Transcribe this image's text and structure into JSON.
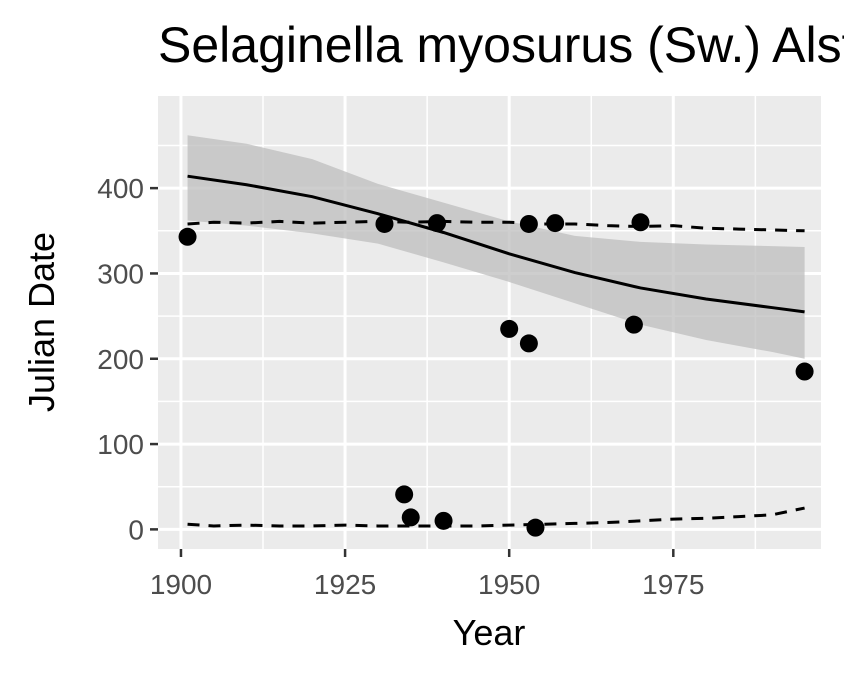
{
  "chart_data": {
    "type": "scatter",
    "title": "Selaginella myosurus (Sw.) Alston",
    "xlabel": "Year",
    "ylabel": "Julian Date",
    "xlim": [
      1896.5,
      1997.5
    ],
    "ylim": [
      -23,
      508
    ],
    "x_ticks": [
      1900,
      1925,
      1950,
      1975
    ],
    "x_tick_labels": [
      "1900",
      "1925",
      "1950",
      "1975"
    ],
    "y_ticks": [
      0,
      100,
      200,
      300,
      400
    ],
    "y_tick_labels": [
      "0",
      "100",
      "200",
      "300",
      "400"
    ],
    "grid": true,
    "legend": "none",
    "colors": {
      "panel": "#ebebeb",
      "grid": "#ffffff",
      "points": "#000000",
      "ribbon": "#bdbdbd"
    },
    "points": {
      "x": [
        1901,
        1931,
        1934,
        1935,
        1939,
        1940,
        1950,
        1953,
        1953,
        1954,
        1957,
        1969,
        1970,
        1995
      ],
      "y": [
        343,
        358,
        41,
        14,
        359,
        10,
        235,
        218,
        358,
        2,
        359,
        240,
        360,
        185
      ]
    },
    "trend_line": {
      "x": [
        1901,
        1910,
        1920,
        1930,
        1940,
        1950,
        1960,
        1970,
        1980,
        1990,
        1995
      ],
      "y": [
        414,
        404,
        390,
        370,
        348,
        323,
        301,
        283,
        270,
        260,
        255
      ]
    },
    "confidence_band": {
      "x": [
        1901,
        1910,
        1920,
        1930,
        1940,
        1950,
        1960,
        1970,
        1980,
        1990,
        1995
      ],
      "lower": [
        362,
        356,
        347,
        335,
        313,
        290,
        265,
        240,
        222,
        208,
        200
      ],
      "upper": [
        462,
        452,
        434,
        405,
        383,
        361,
        344,
        337,
        334,
        332,
        331
      ]
    },
    "upper_dashed": {
      "x": [
        1901,
        1905,
        1910,
        1915,
        1920,
        1925,
        1930,
        1935,
        1940,
        1945,
        1950,
        1955,
        1960,
        1965,
        1970,
        1975,
        1980,
        1985,
        1990,
        1995
      ],
      "y": [
        358,
        360,
        359,
        361,
        359,
        360,
        361,
        360,
        361,
        360,
        360,
        358,
        358,
        356,
        355,
        356,
        353,
        352,
        351,
        350
      ]
    },
    "lower_dashed": {
      "x": [
        1901,
        1905,
        1910,
        1915,
        1920,
        1925,
        1930,
        1935,
        1940,
        1945,
        1950,
        1955,
        1960,
        1965,
        1970,
        1975,
        1980,
        1985,
        1990,
        1995
      ],
      "y": [
        6,
        4,
        5,
        4,
        4,
        5,
        4,
        4,
        4,
        4,
        5,
        6,
        7,
        8,
        10,
        12,
        13,
        15,
        17,
        25
      ]
    }
  }
}
